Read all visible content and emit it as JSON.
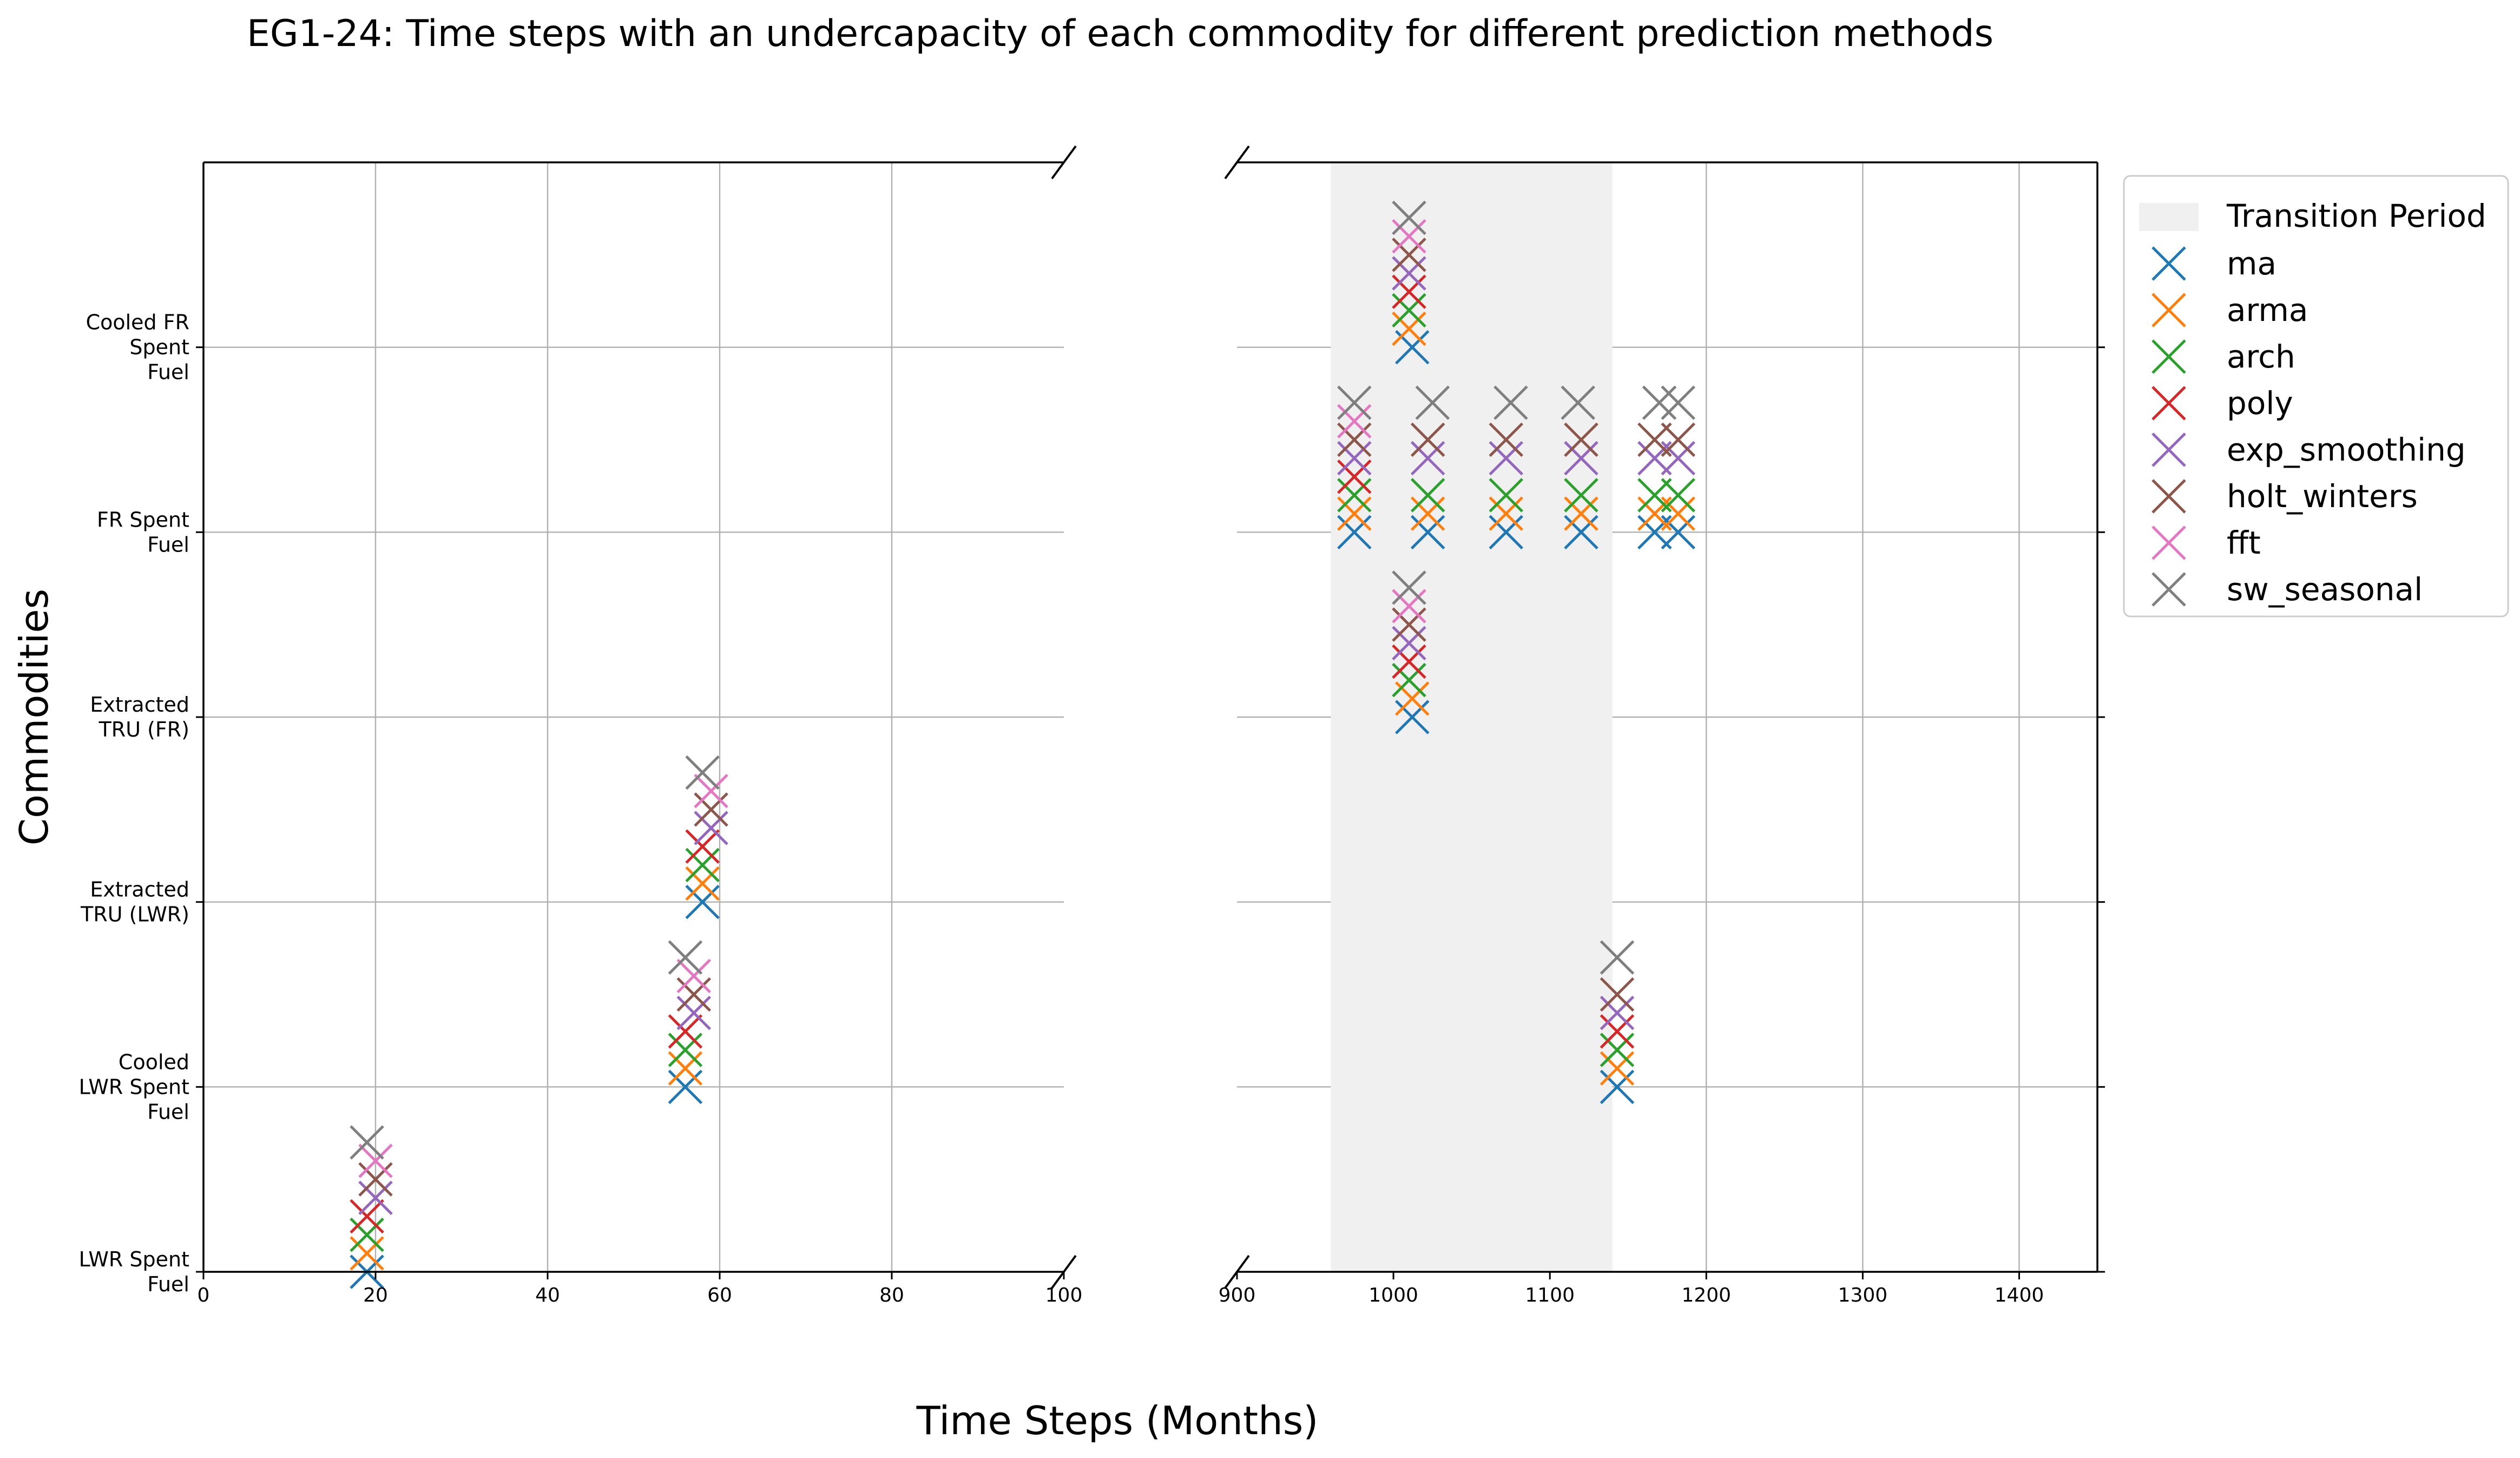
{
  "chart_data": {
    "type": "scatter",
    "title": "EG1-24: Time steps with an undercapacity of each commodity for different prediction methods",
    "xlabel": "Time Steps (Months)",
    "ylabel": "Commodities",
    "categories": [
      "LWR Spent Fuel",
      "Cooled LWR Spent Fuel",
      "Extracted TRU (LWR)",
      "Extracted TRU (FR)",
      "FR Spent Fuel",
      "Cooled FR Spent Fuel"
    ],
    "category_labels": [
      [
        "LWR Spent",
        "Fuel"
      ],
      [
        "Cooled",
        "LWR Spent",
        "Fuel"
      ],
      [
        "Extracted",
        "TRU (LWR)"
      ],
      [
        "Extracted",
        "TRU (FR)"
      ],
      [
        "FR Spent",
        "Fuel"
      ],
      [
        "Cooled FR",
        "Spent",
        "Fuel"
      ]
    ],
    "ylim": [
      0,
      6
    ],
    "panels": [
      {
        "xlim": [
          0,
          100
        ],
        "xticks": [
          0,
          20,
          40,
          60,
          80,
          100
        ]
      },
      {
        "xlim": [
          900,
          1450
        ],
        "xticks": [
          900,
          1000,
          1100,
          1200,
          1300,
          1400
        ]
      }
    ],
    "grid": true,
    "legend_position": "outside-right",
    "transition_period": {
      "label": "Transition Period",
      "start": 960,
      "end": 1140,
      "color": "#f0f0f0"
    },
    "series": [
      {
        "name": "ma",
        "color": "#1f77b4",
        "offset": 0.0,
        "points": [
          [
            19,
            0
          ],
          [
            56,
            1
          ],
          [
            58,
            2
          ],
          [
            1012,
            5
          ],
          [
            1012,
            3
          ],
          [
            975,
            4
          ],
          [
            1022,
            4
          ],
          [
            1072,
            4
          ],
          [
            1120,
            4
          ],
          [
            1167,
            4
          ],
          [
            1182,
            4
          ],
          [
            1143,
            1
          ]
        ]
      },
      {
        "name": "arma",
        "color": "#ff7f0e",
        "offset": 0.1,
        "points": [
          [
            19,
            0
          ],
          [
            56,
            1
          ],
          [
            58,
            2
          ],
          [
            1010,
            5
          ],
          [
            1012,
            3
          ],
          [
            975,
            4
          ],
          [
            1022,
            4
          ],
          [
            1072,
            4
          ],
          [
            1120,
            4
          ],
          [
            1167,
            4
          ],
          [
            1182,
            4
          ],
          [
            1143,
            1
          ]
        ]
      },
      {
        "name": "arch",
        "color": "#2ca02c",
        "offset": 0.2,
        "points": [
          [
            19,
            0
          ],
          [
            56,
            1
          ],
          [
            58,
            2
          ],
          [
            1010,
            5
          ],
          [
            1010,
            3
          ],
          [
            975,
            4
          ],
          [
            1022,
            4
          ],
          [
            1072,
            4
          ],
          [
            1120,
            4
          ],
          [
            1167,
            4
          ],
          [
            1182,
            4
          ],
          [
            1143,
            1
          ]
        ]
      },
      {
        "name": "poly",
        "color": "#d62728",
        "offset": 0.3,
        "points": [
          [
            19,
            0
          ],
          [
            56,
            1
          ],
          [
            58,
            2
          ],
          [
            1010,
            5
          ],
          [
            1010,
            3
          ],
          [
            975,
            4
          ],
          [
            1143,
            1
          ]
        ]
      },
      {
        "name": "exp_smoothing",
        "color": "#9467bd",
        "offset": 0.4,
        "points": [
          [
            20,
            0
          ],
          [
            57,
            1
          ],
          [
            59,
            2
          ],
          [
            1010,
            5
          ],
          [
            1010,
            3
          ],
          [
            975,
            4
          ],
          [
            1022,
            4
          ],
          [
            1072,
            4
          ],
          [
            1120,
            4
          ],
          [
            1167,
            4
          ],
          [
            1182,
            4
          ],
          [
            1143,
            1
          ]
        ]
      },
      {
        "name": "holt_winters",
        "color": "#8c564b",
        "offset": 0.5,
        "points": [
          [
            20,
            0
          ],
          [
            57,
            1
          ],
          [
            59,
            2
          ],
          [
            1010,
            5
          ],
          [
            1010,
            3
          ],
          [
            975,
            4
          ],
          [
            1022,
            4
          ],
          [
            1072,
            4
          ],
          [
            1120,
            4
          ],
          [
            1167,
            4
          ],
          [
            1182,
            4
          ],
          [
            1143,
            1
          ]
        ]
      },
      {
        "name": "fft",
        "color": "#e377c2",
        "offset": 0.6,
        "points": [
          [
            20,
            0
          ],
          [
            57,
            1
          ],
          [
            59,
            2
          ],
          [
            1010,
            5
          ],
          [
            1010,
            3
          ],
          [
            975,
            4
          ]
        ]
      },
      {
        "name": "sw_seasonal",
        "color": "#7f7f7f",
        "offset": 0.7,
        "points": [
          [
            19,
            0
          ],
          [
            56,
            1
          ],
          [
            58,
            2
          ],
          [
            1010,
            5
          ],
          [
            1010,
            3
          ],
          [
            975,
            4
          ],
          [
            1025,
            4
          ],
          [
            1075,
            4
          ],
          [
            1118,
            4
          ],
          [
            1170,
            4
          ],
          [
            1182,
            4
          ],
          [
            1143,
            1
          ]
        ]
      }
    ]
  }
}
